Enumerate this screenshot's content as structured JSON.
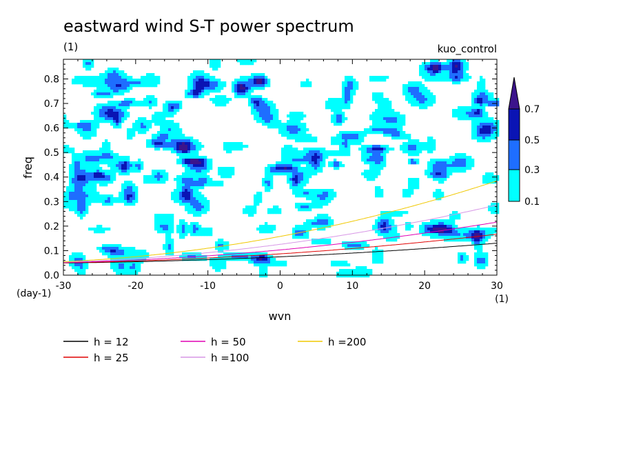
{
  "chart_data": {
    "type": "contour",
    "title": "eastward wind S-T power spectrum",
    "subtitle_left": "(1)",
    "subtitle_right": "kuo_control",
    "xlabel": "wvn",
    "ylabel": "freq",
    "x_unit": "(1)",
    "y_unit": "(day-1)",
    "xlim": [
      -30,
      30
    ],
    "ylim": [
      0,
      0.88
    ],
    "xticks": [
      "-30",
      "-20",
      "-10",
      "0",
      "10",
      "20",
      "30"
    ],
    "yticks": [
      "0.0",
      "0.1",
      "0.2",
      "0.3",
      "0.4",
      "0.5",
      "0.6",
      "0.7",
      "0.8"
    ],
    "colorbar": {
      "levels": [
        "0.1",
        "0.3",
        "0.5",
        "0.7"
      ],
      "colors": [
        "#00ffff",
        "#1e6eff",
        "#0a14b4",
        "#3c148c"
      ]
    },
    "dispersion_curves": [
      {
        "label": "h = 12",
        "h": 12,
        "color": "#000000"
      },
      {
        "label": "h = 25",
        "h": 25,
        "color": "#e00000"
      },
      {
        "label": "h = 50",
        "h": 50,
        "color": "#e000b4"
      },
      {
        "label": "h =100",
        "h": 100,
        "color": "#d796e6"
      },
      {
        "label": "h =200",
        "h": 200,
        "color": "#f0c800"
      }
    ]
  }
}
